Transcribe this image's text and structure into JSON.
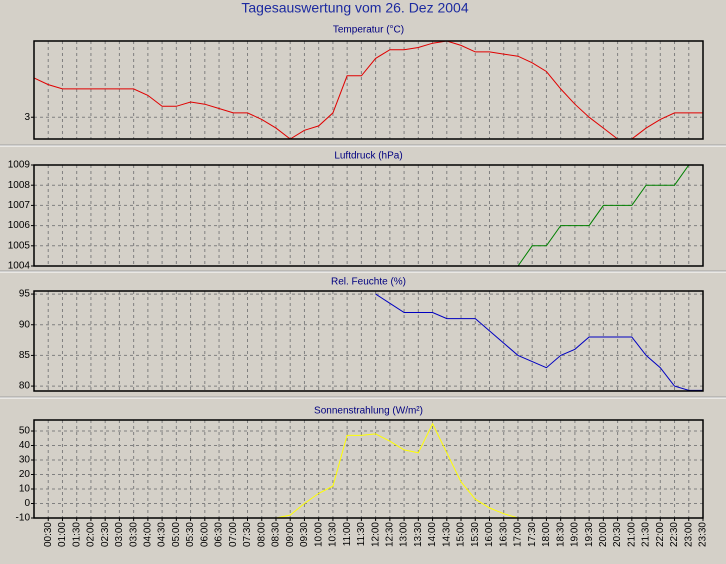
{
  "title": "Tagesauswertung vom 26. Dez 2004",
  "chart_data": [
    {
      "type": "line",
      "title": "Temperatur (°C)",
      "color": "#e00000",
      "values": [
        4.8,
        4.5,
        4.3,
        4.3,
        4.3,
        4.3,
        4.3,
        4.3,
        4.0,
        3.5,
        3.5,
        3.7,
        3.6,
        3.4,
        3.2,
        3.2,
        2.9,
        2.5,
        2.0,
        2.4,
        2.6,
        3.2,
        4.9,
        4.9,
        5.7,
        6.1,
        6.1,
        6.2,
        6.4,
        6.5,
        6.3,
        6.0,
        6.0,
        5.9,
        5.8,
        5.5,
        5.1,
        4.3,
        3.6,
        3.0,
        2.5,
        2.0,
        2.0,
        2.5,
        2.9,
        3.2,
        3.2,
        3.2
      ],
      "ylim": [
        2,
        6.5
      ],
      "yticks": [
        3
      ],
      "grid": true
    },
    {
      "type": "line",
      "title": "Luftdruck (hPa)",
      "color": "#008000",
      "values": [
        null,
        null,
        null,
        null,
        null,
        null,
        null,
        null,
        null,
        null,
        null,
        null,
        null,
        null,
        null,
        null,
        null,
        null,
        null,
        null,
        null,
        null,
        null,
        null,
        null,
        null,
        null,
        null,
        null,
        null,
        null,
        null,
        null,
        null,
        1004,
        1005,
        1005,
        1006,
        1006,
        1006,
        1007,
        1007,
        1007,
        1008,
        1008,
        1008,
        1009,
        1009
      ],
      "ylim": [
        1004,
        1009
      ],
      "yticks": [
        1004,
        1005,
        1006,
        1007,
        1008,
        1009
      ],
      "grid": true
    },
    {
      "type": "line",
      "title": "Rel. Feuchte (%)",
      "color": "#0000c0",
      "values": [
        null,
        null,
        null,
        null,
        null,
        null,
        null,
        null,
        null,
        null,
        null,
        null,
        null,
        null,
        null,
        null,
        null,
        null,
        null,
        null,
        null,
        null,
        null,
        null,
        95,
        93.5,
        92,
        92,
        92,
        91,
        91,
        91,
        89,
        87,
        85,
        84,
        83,
        85,
        86,
        88,
        88,
        88,
        88,
        85,
        83,
        80,
        79.3,
        79.3
      ],
      "ylim": [
        79.2,
        95.5
      ],
      "yticks": [
        80,
        85,
        90,
        95
      ],
      "grid": true
    },
    {
      "type": "line",
      "title": "Sonnenstrahlung (W/m²)",
      "color": "#ffff00",
      "values": [
        -10,
        -10,
        -10,
        -10,
        -10,
        -10,
        -10,
        -10,
        -10,
        -10,
        -10,
        -10,
        -10,
        -10,
        -10,
        -10,
        -10,
        -10,
        -8,
        0,
        7,
        12,
        47,
        47,
        48,
        43,
        37,
        35,
        55,
        35,
        15,
        3,
        -3,
        -7,
        -10,
        -10,
        -10,
        -10,
        -10,
        -10,
        -10,
        -10,
        -10,
        -10,
        -10,
        -10,
        -10,
        -10
      ],
      "ylim": [
        -10,
        57.6
      ],
      "yticks": [
        -10,
        0,
        10,
        20,
        30,
        40,
        50
      ],
      "grid": true,
      "categories": [
        null,
        "00:30",
        "01:00",
        "01:30",
        "02:00",
        "02:30",
        "03:00",
        "03:30",
        "04:00",
        "04:30",
        "05:00",
        "05:30",
        "06:00",
        "06:30",
        "07:00",
        "07:30",
        "08:00",
        "08:30",
        "09:00",
        "09:30",
        "10:00",
        "10:30",
        "11:00",
        "11:30",
        "12:00",
        "12:30",
        "13:00",
        "13:30",
        "14:00",
        "14:30",
        "15:00",
        "15:30",
        "16:00",
        "16:30",
        "17:00",
        "17:30",
        "18:00",
        "18:30",
        "19:00",
        "19:30",
        "20:00",
        "20:30",
        "21:00",
        "21:30",
        "22:00",
        "22:30",
        "23:00",
        "23:30"
      ]
    }
  ]
}
